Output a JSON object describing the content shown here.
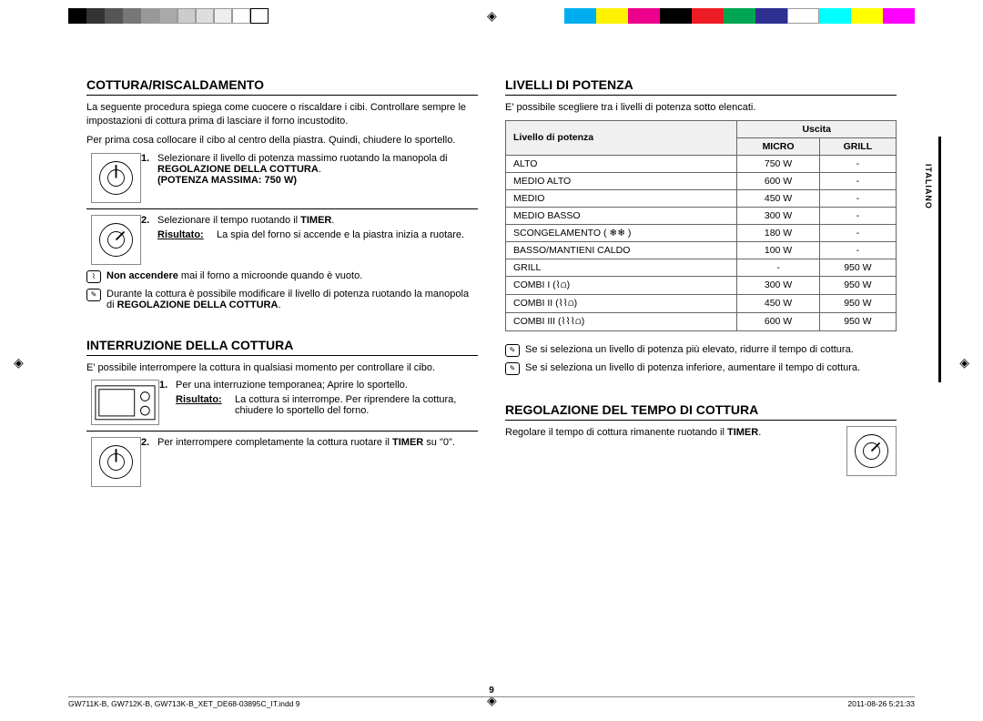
{
  "colorbar_left": [
    "#000000",
    "#333333",
    "#555555",
    "#777777",
    "#999999",
    "#aaaaaa",
    "#cccccc",
    "#dddddd",
    "#eeeeee",
    "#ffffff",
    "#ffffff"
  ],
  "colorbar_right": [
    "#00aeef",
    "#fff200",
    "#ec008c",
    "#000000",
    "#ed1c24",
    "#00a651",
    "#2e3192",
    "#ffffff",
    "#00ffff",
    "#ffff00",
    "#ff00ff"
  ],
  "side_tab": "ITALIANO",
  "page_number": "9",
  "footer_left": "GW711K-B, GW712K-B, GW713K-B_XET_DE68-03895C_IT.indd   9",
  "footer_right": "2011-08-26   5:21:33",
  "sec1": {
    "title": "COTTURA/RISCALDAMENTO",
    "intro1": "La seguente procedura spiega come cuocere o riscaldare i cibi. Controllare sempre le impostazioni di cottura prima di lasciare il forno incustodito.",
    "intro2": "Per prima cosa collocare il cibo al centro della piastra. Quindi, chiudere lo sportello.",
    "step1_num": "1.",
    "step1_a": "Selezionare il livello di potenza massimo ruotando la manopola di ",
    "step1_b": "REGOLAZIONE DELLA COTTURA",
    "step1_c": ".",
    "step1_d": "(POTENZA MASSIMA: 750 W)",
    "step2_num": "2.",
    "step2_a": "Selezionare il tempo ruotando il ",
    "step2_b": "TIMER",
    "step2_c": ".",
    "result_label": "Risultato:",
    "result_text": "La spia del forno si accende e la piastra inizia a ruotare.",
    "note1_a": "Non accendere",
    "note1_b": " mai il forno a microonde quando è vuoto.",
    "note2_a": "Durante la cottura è possibile modificare il livello di potenza ruotando la manopola di ",
    "note2_b": "REGOLAZIONE DELLA COTTURA",
    "note2_c": "."
  },
  "sec2": {
    "title": "INTERRUZIONE DELLA COTTURA",
    "intro": "E' possibile interrompere la cottura in qualsiasi momento per controllare il cibo.",
    "step1_num": "1.",
    "step1_text": "Per una interruzione temporanea; Aprire lo sportello.",
    "result_label": "Risultato:",
    "result_text": "La cottura si interrompe. Per riprendere la cottura, chiudere lo sportello del forno.",
    "step2_num": "2.",
    "step2_a": "Per interrompere completamente la cottura ruotare il ",
    "step2_b": "TIMER",
    "step2_c": " su \"0\"."
  },
  "sec3": {
    "title": "LIVELLI DI POTENZA",
    "intro": "E' possibile scegliere tra i livelli di potenza sotto elencati.",
    "table": {
      "col1_header": "Livello di potenza",
      "col_group_header": "Uscita",
      "col2_header": "MICRO",
      "col3_header": "GRILL",
      "rows": [
        {
          "l": "ALTO",
          "m": "750 W",
          "g": "-"
        },
        {
          "l": "MEDIO ALTO",
          "m": "600 W",
          "g": "-"
        },
        {
          "l": "MEDIO",
          "m": "450 W",
          "g": "-"
        },
        {
          "l": "MEDIO BASSO",
          "m": "300 W",
          "g": "-"
        },
        {
          "l": "SCONGELAMENTO ( ❄❄ )",
          "m": "180 W",
          "g": "-"
        },
        {
          "l": "BASSO/MANTIENI CALDO",
          "m": "100 W",
          "g": "-"
        },
        {
          "l": "GRILL",
          "m": "-",
          "g": "950 W"
        },
        {
          "l": "COMBI I (⌇⩍)",
          "m": "300 W",
          "g": "950 W"
        },
        {
          "l": "COMBI II (⌇⌇⩍)",
          "m": "450 W",
          "g": "950 W"
        },
        {
          "l": "COMBI III (⌇⌇⌇⩍)",
          "m": "600 W",
          "g": "950 W"
        }
      ]
    },
    "note1": "Se si seleziona un livello di potenza più elevato, ridurre il tempo di cottura.",
    "note2": "Se si seleziona un livello di potenza inferiore, aumentare il tempo di cottura."
  },
  "sec4": {
    "title": "REGOLAZIONE DEL TEMPO DI COTTURA",
    "text_a": "Regolare il tempo di cottura rimanente ruotando il ",
    "text_b": "TIMER",
    "text_c": "."
  }
}
